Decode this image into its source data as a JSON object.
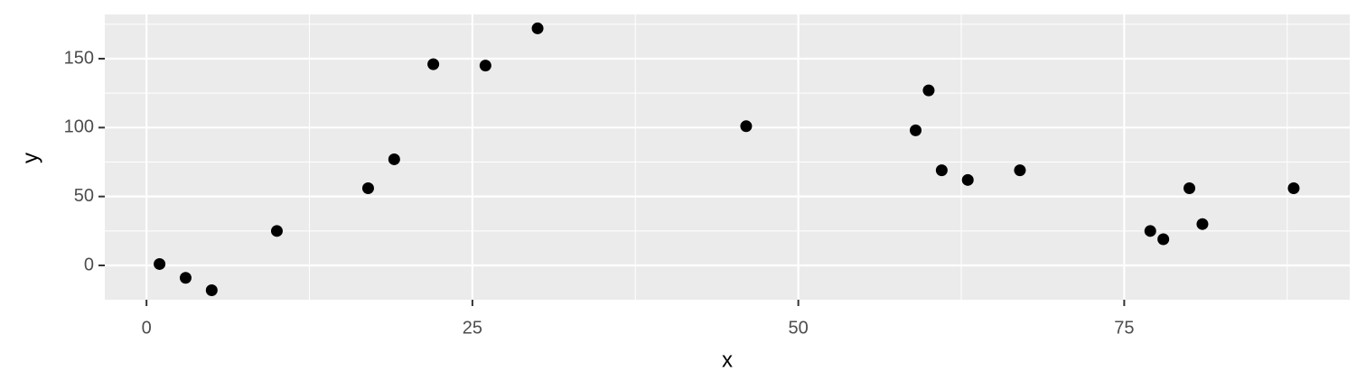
{
  "chart_data": {
    "type": "scatter",
    "x_label": "x",
    "y_label": "y",
    "x": [
      1,
      3,
      5,
      10,
      17,
      19,
      22,
      26,
      30,
      46,
      59,
      60,
      61,
      63,
      67,
      77,
      78,
      80,
      81,
      88
    ],
    "values": [
      1,
      -9,
      -18,
      25,
      56,
      77,
      146,
      145,
      172,
      101,
      98,
      127,
      69,
      62,
      69,
      25,
      19,
      56,
      30,
      56
    ],
    "color": "#000000",
    "xlim": [
      -3.2,
      92.3
    ],
    "xticks": [
      0,
      25,
      50,
      75
    ],
    "ylim": [
      -24.9,
      182.1
    ],
    "yticks": [
      0,
      50,
      100,
      150
    ],
    "grid": true
  }
}
